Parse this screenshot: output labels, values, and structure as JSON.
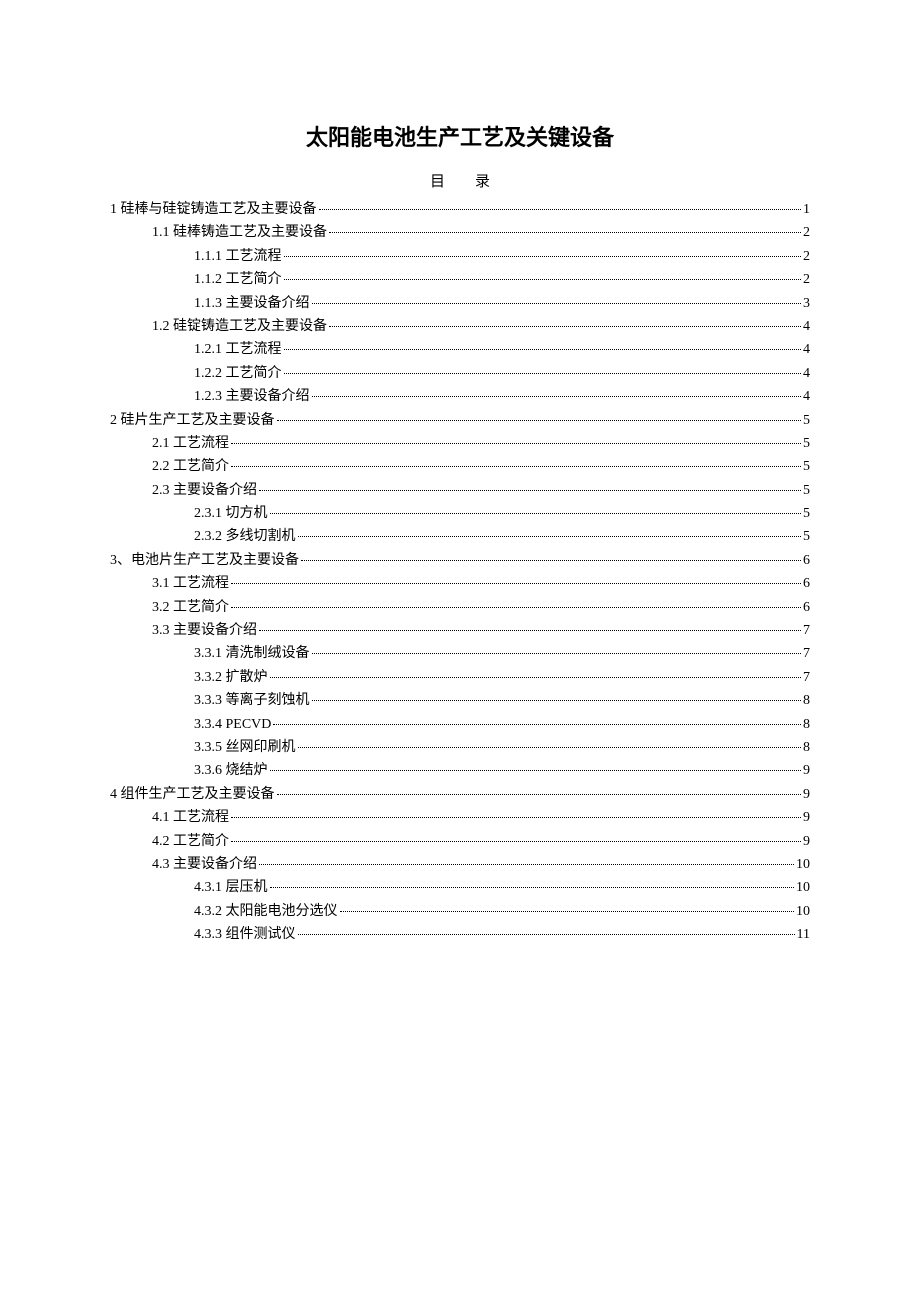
{
  "document": {
    "title": "太阳能电池生产工艺及关键设备",
    "toc_header": "目录",
    "colors": {
      "background": "#ffffff",
      "text": "#000000",
      "dots": "#000000"
    },
    "typography": {
      "title_fontsize": 22,
      "toc_fontsize": 14,
      "title_fontfamily": "SimHei",
      "body_fontfamily": "SimSun"
    },
    "toc": [
      {
        "level": 0,
        "label": "1 硅棒与硅锭铸造工艺及主要设备",
        "page": "1"
      },
      {
        "level": 1,
        "label": "1.1 硅棒铸造工艺及主要设备",
        "page": "2"
      },
      {
        "level": 2,
        "label": "1.1.1 工艺流程",
        "page": "2"
      },
      {
        "level": 2,
        "label": "1.1.2 工艺简介",
        "page": "2"
      },
      {
        "level": 2,
        "label": "1.1.3 主要设备介绍",
        "page": "3"
      },
      {
        "level": 1,
        "label": "1.2 硅锭铸造工艺及主要设备",
        "page": "4"
      },
      {
        "level": 2,
        "label": "1.2.1 工艺流程",
        "page": "4"
      },
      {
        "level": 2,
        "label": "1.2.2 工艺简介",
        "page": "4"
      },
      {
        "level": 2,
        "label": "1.2.3 主要设备介绍",
        "page": "4"
      },
      {
        "level": 0,
        "label": "2 硅片生产工艺及主要设备",
        "page": "5"
      },
      {
        "level": 1,
        "label": "2.1 工艺流程",
        "page": "5"
      },
      {
        "level": 1,
        "label": "2.2 工艺简介",
        "page": "5"
      },
      {
        "level": 1,
        "label": "2.3 主要设备介绍",
        "page": "5"
      },
      {
        "level": 2,
        "label": "2.3.1 切方机",
        "page": "5"
      },
      {
        "level": 2,
        "label": "2.3.2 多线切割机",
        "page": "5"
      },
      {
        "level": 0,
        "label": "3、电池片生产工艺及主要设备",
        "page": "6"
      },
      {
        "level": 1,
        "label": "3.1 工艺流程",
        "page": "6"
      },
      {
        "level": 1,
        "label": "3.2 工艺简介",
        "page": "6"
      },
      {
        "level": 1,
        "label": "3.3 主要设备介绍",
        "page": "7"
      },
      {
        "level": 2,
        "label": "3.3.1 清洗制绒设备",
        "page": "7"
      },
      {
        "level": 2,
        "label": "3.3.2 扩散炉",
        "page": "7"
      },
      {
        "level": 2,
        "label": "3.3.3 等离子刻蚀机",
        "page": "8"
      },
      {
        "level": 2,
        "label": "3.3.4 PECVD",
        "page": "8"
      },
      {
        "level": 2,
        "label": "3.3.5 丝网印刷机",
        "page": "8"
      },
      {
        "level": 2,
        "label": "3.3.6 烧结炉",
        "page": "9"
      },
      {
        "level": 0,
        "label": "4 组件生产工艺及主要设备",
        "page": "9"
      },
      {
        "level": 1,
        "label": "4.1 工艺流程",
        "page": "9"
      },
      {
        "level": 1,
        "label": "4.2 工艺简介",
        "page": "9"
      },
      {
        "level": 1,
        "label": "4.3 主要设备介绍",
        "page": "10"
      },
      {
        "level": 2,
        "label": "4.3.1 层压机",
        "page": "10"
      },
      {
        "level": 2,
        "label": "4.3.2 太阳能电池分选仪",
        "page": "10"
      },
      {
        "level": 2,
        "label": "4.3.3 组件测试仪",
        "page": "11"
      }
    ]
  }
}
